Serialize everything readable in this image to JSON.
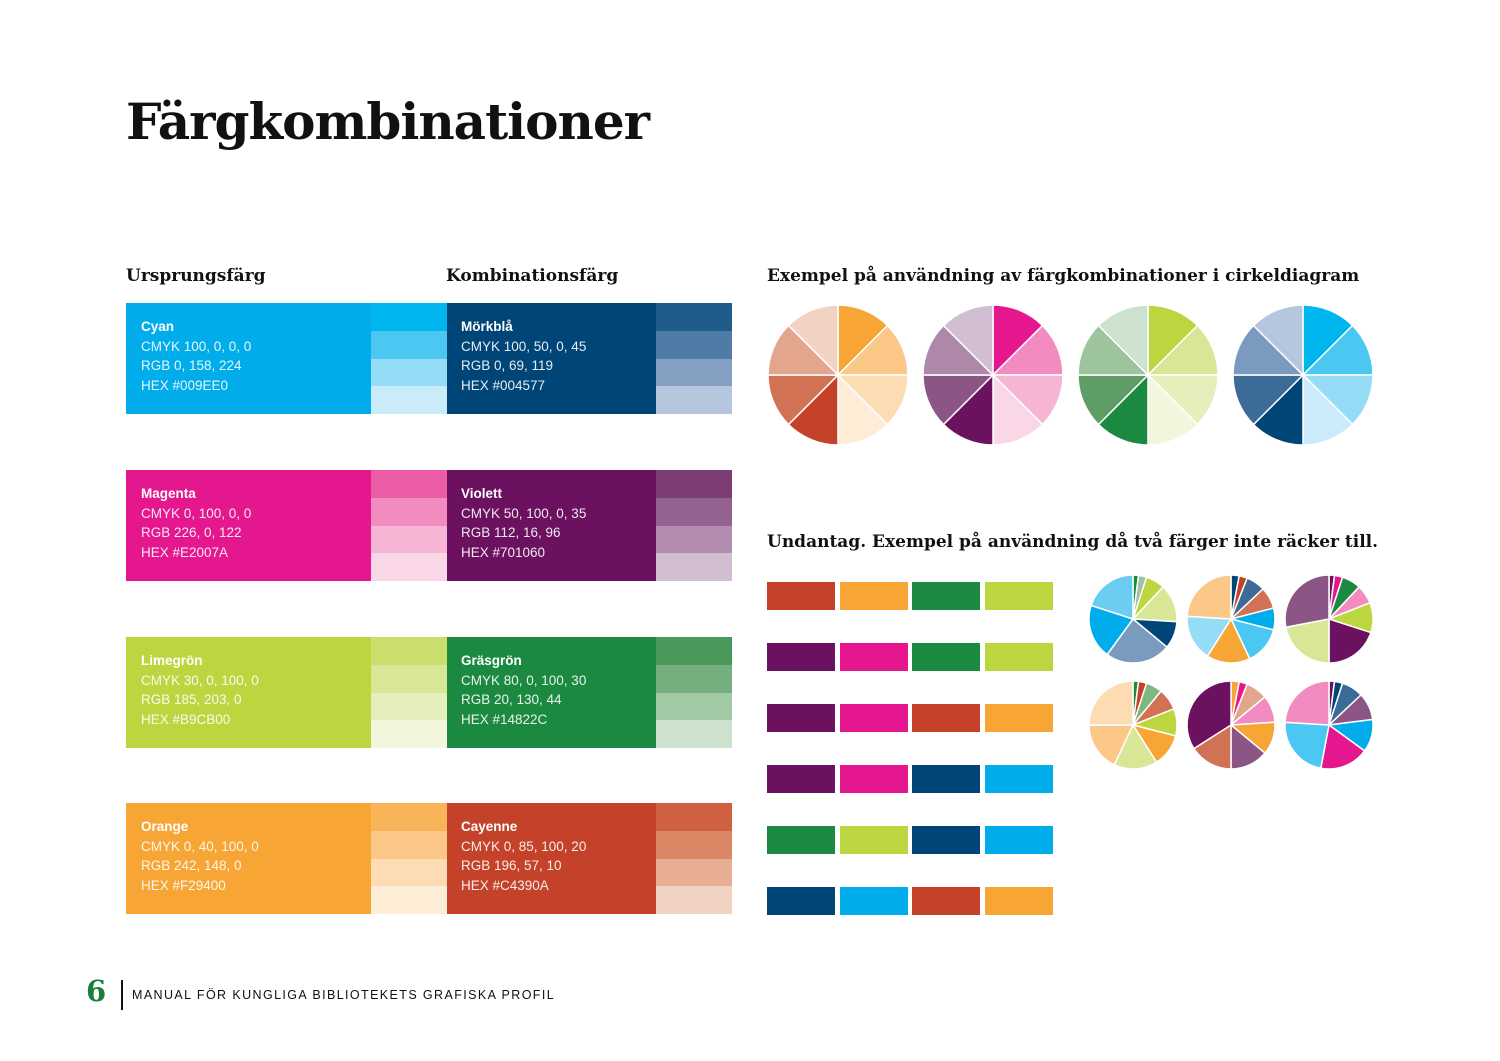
{
  "title": "Färgkombinationer",
  "columns": {
    "origin": "Ursprungsfärg",
    "combo": "Kombinationsfärg"
  },
  "pie_heading": "Exempel på användning av färgkombinationer i cirkeldiagram",
  "exception": {
    "bold": "Undantag.",
    "text": " Exempel på användning då två färger inte räcker till."
  },
  "swatches": [
    {
      "origin": {
        "name": "Cyan",
        "cmyk": "CMYK 100, 0, 0, 0",
        "rgb": "RGB 0, 158, 224",
        "hex": "HEX #009EE0",
        "color": "#00ADEA",
        "tints": [
          "#00B6EE",
          "#4BC8F2",
          "#95DCF6",
          "#C9EBFA"
        ]
      },
      "combo": {
        "name": "Mörkblå",
        "cmyk": "CMYK 100, 50, 0, 45",
        "rgb": "RGB 0, 69, 119",
        "hex": "HEX #004577",
        "color": "#004577",
        "tints": [
          "#1E5C8A",
          "#4F7CA6",
          "#849FC2",
          "#B6C6DE"
        ]
      }
    },
    {
      "origin": {
        "name": "Magenta",
        "cmyk": "CMYK 0, 100, 0, 0",
        "rgb": "RGB 226, 0, 122",
        "hex": "HEX #E2007A",
        "color": "#E5178E",
        "tints": [
          "#EC5BA6",
          "#F28CC0",
          "#F6B5D5",
          "#FAD7E7"
        ]
      },
      "combo": {
        "name": "Violett",
        "cmyk": "CMYK 50, 100, 0, 35",
        "rgb": "RGB 112, 16, 96",
        "hex": "HEX #701060",
        "color": "#6B1160",
        "tints": [
          "#7C3C74",
          "#946291",
          "#B38DB0",
          "#D2BED3"
        ]
      }
    },
    {
      "origin": {
        "name": "Limegrön",
        "cmyk": "CMYK 30, 0, 100, 0",
        "rgb": "RGB 185, 203, 0",
        "hex": "HEX #B9CB00",
        "color": "#BCD63F",
        "tints": [
          "#CADF6B",
          "#D8E795",
          "#E5EFBC",
          "#F1F6DD"
        ]
      },
      "combo": {
        "name": "Gräsgrön",
        "cmyk": "CMYK 80, 0, 100, 30",
        "rgb": "RGB 20, 130, 44",
        "hex": "HEX #14822C",
        "color": "#1B8A40",
        "tints": [
          "#4A985A",
          "#74AE7E",
          "#A1C9A6",
          "#CCE2CE"
        ]
      }
    },
    {
      "origin": {
        "name": "Orange",
        "cmyk": "CMYK 0, 40, 100, 0",
        "rgb": "RGB 242, 148, 0",
        "hex": "HEX #F29400",
        "color": "#F7A535",
        "tints": [
          "#F9B45A",
          "#FBC888",
          "#FDDBB3",
          "#FEEDD6"
        ]
      },
      "combo": {
        "name": "Cayenne",
        "cmyk": "CMYK 0, 85, 100, 20",
        "rgb": "RGB 196, 57, 10",
        "hex": "HEX #C4390A",
        "color": "#C4422A",
        "tints": [
          "#CF6040",
          "#DB8765",
          "#E7AE93",
          "#F2D2C3"
        ]
      }
    }
  ],
  "pies_large": [
    [
      "#F7A535",
      "#FBC888",
      "#FDDBB3",
      "#FEEDD6",
      "#C4422A",
      "#D27255",
      "#E3A68C",
      "#F2D2C3"
    ],
    [
      "#E5178E",
      "#F28CC0",
      "#F6B5D5",
      "#FAD7E7",
      "#6B1160",
      "#8B5585",
      "#AE88A9",
      "#D2BED3"
    ],
    [
      "#BCD63F",
      "#D8E795",
      "#E5EFBC",
      "#F1F6DD",
      "#1B8A40",
      "#5E9E66",
      "#9EC49F",
      "#CCE2CE"
    ],
    [
      "#00B6EE",
      "#4BC8F2",
      "#95DCF6",
      "#C9EBFA",
      "#004577",
      "#3D6B98",
      "#7A9BBF",
      "#B6C6DE"
    ]
  ],
  "pies_small": [
    {
      "values": [
        2,
        3,
        7,
        14,
        10,
        24,
        20,
        20
      ],
      "colors": [
        "#1B8A40",
        "#9EC49F",
        "#BCD63F",
        "#D8E795",
        "#004577",
        "#7A9BBF",
        "#00ADEA",
        "#6CCCF2"
      ]
    },
    {
      "values": [
        3,
        3,
        7,
        8,
        8,
        14,
        16,
        17,
        24
      ],
      "colors": [
        "#004577",
        "#C4422A",
        "#3D6B98",
        "#D27255",
        "#00ADEA",
        "#4BC8F2",
        "#F7A535",
        "#95DCF6",
        "#FBC888"
      ]
    },
    {
      "values": [
        2,
        3,
        7,
        7,
        11,
        20,
        22,
        28
      ],
      "colors": [
        "#6B1160",
        "#E5178E",
        "#1B8A40",
        "#F28CC0",
        "#BCD63F",
        "#6B1160",
        "#D8E795",
        "#8B5585"
      ]
    },
    {
      "values": [
        2,
        3,
        6,
        8,
        10,
        12,
        16,
        18,
        25
      ],
      "colors": [
        "#1B8A40",
        "#C4422A",
        "#7EB77F",
        "#D27255",
        "#BCD63F",
        "#F7A535",
        "#D8E795",
        "#FBC888",
        "#FDDBB3"
      ]
    },
    {
      "values": [
        3,
        3,
        8,
        10,
        12,
        14,
        16,
        34
      ],
      "colors": [
        "#F7A535",
        "#E5178E",
        "#E3A68C",
        "#F28CC0",
        "#F7A535",
        "#8B5585",
        "#D27255",
        "#6B1160"
      ]
    },
    {
      "values": [
        2,
        3,
        8,
        10,
        12,
        18,
        23,
        24
      ],
      "colors": [
        "#6B1160",
        "#004577",
        "#3D6B98",
        "#8B5585",
        "#00ADEA",
        "#E5178E",
        "#4BC8F2",
        "#F28CC0"
      ]
    }
  ],
  "bar_rows": [
    [
      "#C4422A",
      "#F7A535",
      "#1B8A40",
      "#BCD63F"
    ],
    [
      "#6B1160",
      "#E5178E",
      "#1B8A40",
      "#BCD63F"
    ],
    [
      "#6B1160",
      "#E5178E",
      "#C4422A",
      "#F7A535"
    ],
    [
      "#6B1160",
      "#E5178E",
      "#004577",
      "#00ADEA"
    ],
    [
      "#1B8A40",
      "#BCD63F",
      "#004577",
      "#00ADEA"
    ],
    [
      "#004577",
      "#00ADEA",
      "#C4422A",
      "#F7A535"
    ]
  ],
  "footer": {
    "page": "6",
    "text": "MANUAL FÖR KUNGLIGA BIBLIOTEKETS GRAFISKA PROFIL"
  }
}
